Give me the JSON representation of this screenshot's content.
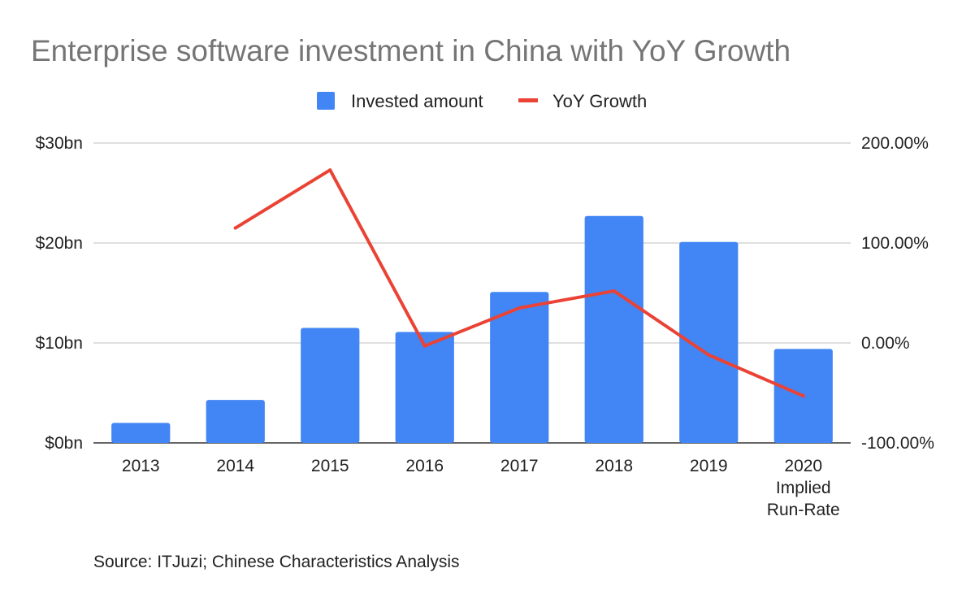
{
  "chart_data": {
    "type": "bar",
    "title": "Enterprise software investment in China with YoY Growth",
    "categories": [
      [
        "2013"
      ],
      [
        "2014"
      ],
      [
        "2015"
      ],
      [
        "2016"
      ],
      [
        "2017"
      ],
      [
        "2018"
      ],
      [
        "2019"
      ],
      [
        "2020",
        "Implied",
        "Run-Rate"
      ]
    ],
    "series": [
      {
        "name": "Invested amount",
        "type": "bar",
        "axis": "left",
        "color": "#4285f4",
        "values": [
          2.0,
          4.3,
          11.5,
          11.1,
          15.1,
          22.7,
          20.1,
          9.4
        ]
      },
      {
        "name": "YoY Growth",
        "type": "line",
        "axis": "right",
        "color": "#ea4335",
        "values": [
          null,
          1.15,
          1.73,
          -0.03,
          0.35,
          0.52,
          -0.12,
          -0.53
        ]
      }
    ],
    "y_left": {
      "range": [
        0,
        30
      ],
      "ticks": [
        0,
        10,
        20,
        30
      ],
      "tick_labels": [
        "$0bn",
        "$10bn",
        "$20bn",
        "$30bn"
      ]
    },
    "y_right": {
      "range": [
        -1,
        2
      ],
      "ticks": [
        -1,
        0,
        1,
        2
      ],
      "tick_labels": [
        "-100.00%",
        "0.00%",
        "100.00%",
        "200.00%"
      ]
    },
    "legend_position": "top",
    "grid": true
  },
  "source": "Source: ITJuzi; Chinese Characteristics Analysis"
}
